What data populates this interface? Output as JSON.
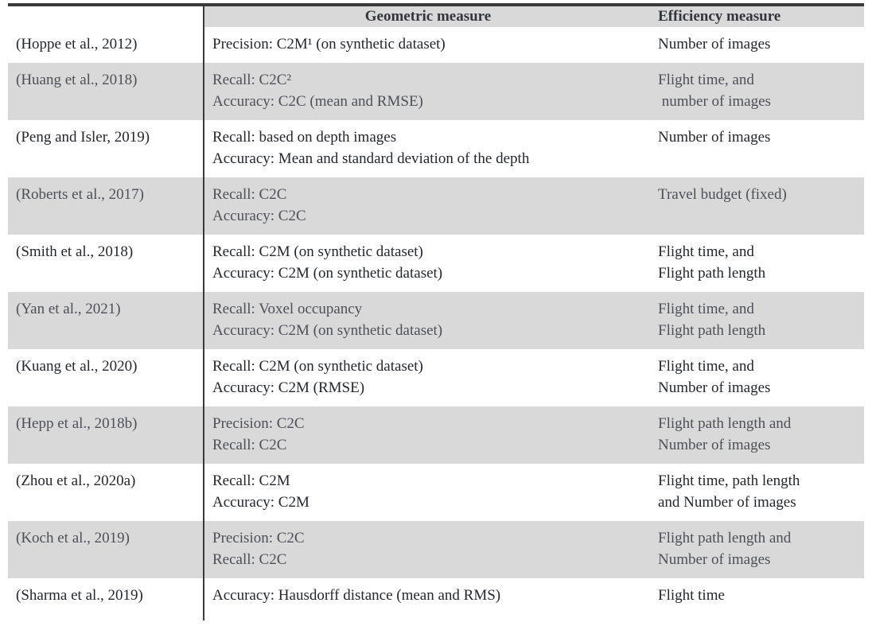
{
  "table": {
    "header": {
      "citation": "",
      "geometric": "Geometric measure",
      "efficiency": "Efficiency measure"
    },
    "rows": [
      {
        "citation": "(Hoppe et al., 2012)",
        "geometric": [
          "Precision: C2M¹ (on synthetic dataset)"
        ],
        "efficiency": [
          "Number of images"
        ],
        "shaded": false
      },
      {
        "citation": "(Huang et al., 2018)",
        "geometric": [
          "Recall: C2C²",
          "Accuracy: C2C (mean and RMSE)"
        ],
        "efficiency": [
          "Flight time, and",
          " number of images"
        ],
        "shaded": true
      },
      {
        "citation": "(Peng and Isler, 2019)",
        "geometric": [
          "Recall: based on depth images",
          "Accuracy: Mean and standard deviation of the depth"
        ],
        "efficiency": [
          "Number of images"
        ],
        "shaded": false
      },
      {
        "citation": "(Roberts et al., 2017)",
        "geometric": [
          "Recall: C2C",
          "Accuracy: C2C"
        ],
        "efficiency": [
          "Travel budget (fixed)"
        ],
        "shaded": true
      },
      {
        "citation": "(Smith et al., 2018)",
        "geometric": [
          "Recall: C2M (on synthetic dataset)",
          "Accuracy: C2M (on synthetic dataset)"
        ],
        "efficiency": [
          "Flight time, and",
          "Flight path length"
        ],
        "shaded": false
      },
      {
        "citation": "(Yan et al., 2021)",
        "geometric": [
          "Recall: Voxel occupancy",
          "Accuracy: C2M (on synthetic dataset)"
        ],
        "efficiency": [
          "Flight time, and",
          "Flight path length"
        ],
        "shaded": true
      },
      {
        "citation": "(Kuang et al., 2020)",
        "geometric": [
          "Recall: C2M (on synthetic dataset)",
          "Accuracy: C2M (RMSE)"
        ],
        "efficiency": [
          "Flight time, and",
          "Number of images"
        ],
        "shaded": false
      },
      {
        "citation": "(Hepp et al., 2018b)",
        "geometric": [
          "Precision: C2C",
          "Recall: C2C"
        ],
        "efficiency": [
          "Flight path length and",
          "Number of images"
        ],
        "shaded": true
      },
      {
        "citation": "(Zhou et al., 2020a)",
        "geometric": [
          "Recall: C2M",
          "Accuracy: C2M"
        ],
        "efficiency": [
          "Flight time, path length",
          "and Number of images"
        ],
        "shaded": false
      },
      {
        "citation": "(Koch et al., 2019)",
        "geometric": [
          "Precision: C2C",
          "Recall: C2C"
        ],
        "efficiency": [
          "Flight path length and",
          "Number of images"
        ],
        "shaded": true
      },
      {
        "citation": "(Sharma et al., 2019)",
        "geometric": [
          "Accuracy: Hausdorff distance (mean and RMS)"
        ],
        "efficiency": [
          "Flight time"
        ],
        "shaded": false
      }
    ]
  },
  "colors": {
    "row_shade": "#d9d9d9",
    "rule": "#3a3a3a",
    "text": "#24272c",
    "text_shaded": "#4d5056",
    "text_header": "#33363b"
  }
}
